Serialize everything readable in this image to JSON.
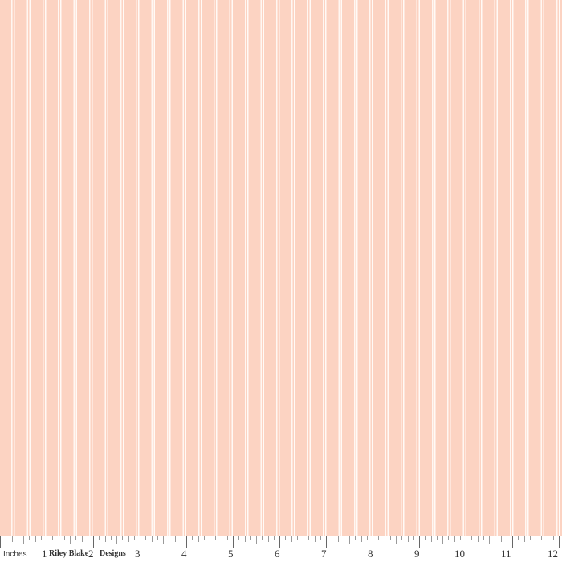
{
  "fabric": {
    "background_color": "#fcd3c2",
    "stripe_color": "#fff7f2",
    "pattern": "double pin stripe"
  },
  "ruler": {
    "unit_label": "Inches",
    "brand_left": "Riley Blake",
    "brand_right": "Designs",
    "numbers": [
      "1",
      "2",
      "3",
      "4",
      "5",
      "6",
      "7",
      "8",
      "9",
      "10",
      "11",
      "12"
    ]
  }
}
